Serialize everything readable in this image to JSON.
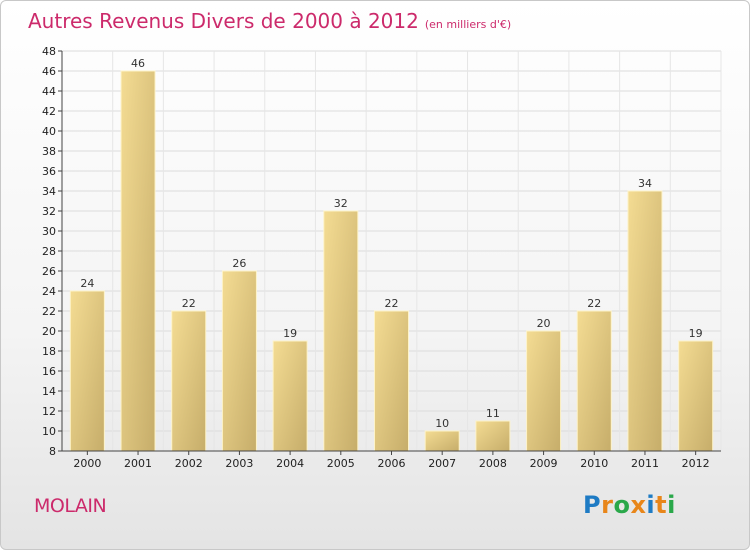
{
  "header": {
    "title": "Autres Revenus Divers de 2000 à 2012",
    "unit": "(en milliers d'€)"
  },
  "footer": {
    "commune": "MOLAIN",
    "brand": "Proxiti"
  },
  "colors": {
    "title": "#cc2a6b",
    "bar_light": "#f4dc93",
    "bar_dark": "#c6ad6a",
    "logo": [
      "#1e7bc4",
      "#e8861a",
      "#2aa84a",
      "#e8861a",
      "#1e7bc4",
      "#e8861a",
      "#2aa84a"
    ]
  },
  "chart_data": {
    "type": "bar",
    "title": "Autres Revenus Divers de 2000 à 2012",
    "subtitle": "(en milliers d'€)",
    "categories": [
      "2000",
      "2001",
      "2002",
      "2003",
      "2004",
      "2005",
      "2006",
      "2007",
      "2008",
      "2009",
      "2010",
      "2011",
      "2012"
    ],
    "values": [
      24,
      46,
      22,
      26,
      19,
      32,
      22,
      10,
      11,
      20,
      22,
      34,
      19
    ],
    "xlabel": "",
    "ylabel": "",
    "ylim": [
      8,
      48
    ],
    "yticks": [
      8,
      10,
      12,
      14,
      16,
      18,
      20,
      22,
      24,
      26,
      28,
      30,
      32,
      34,
      36,
      38,
      40,
      42,
      44,
      46,
      48
    ],
    "grid": true,
    "legend": "none"
  }
}
